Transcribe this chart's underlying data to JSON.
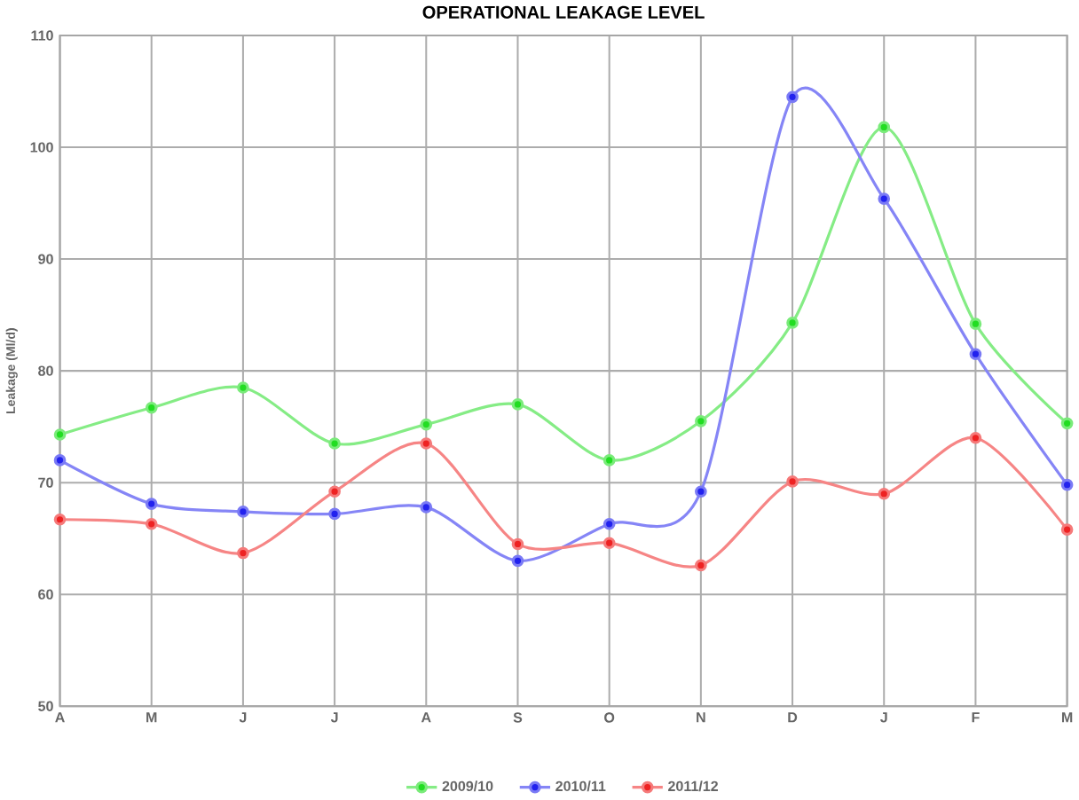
{
  "chart_data": {
    "type": "line",
    "title": "OPERATIONAL LEAKAGE LEVEL",
    "ylabel": "Leakage (Ml/d)",
    "categories": [
      "A",
      "M",
      "J",
      "J",
      "A",
      "S",
      "O",
      "N",
      "D",
      "J",
      "F",
      "M"
    ],
    "series": [
      {
        "name": "2009/10",
        "color": "#22dd22",
        "values": [
          74.3,
          76.7,
          78.5,
          73.5,
          75.2,
          77,
          72,
          75.5,
          84.3,
          101.8,
          84.2,
          75.3
        ]
      },
      {
        "name": "2010/11",
        "color": "#2222ee",
        "values": [
          72,
          68.1,
          67.4,
          67.2,
          67.8,
          63,
          66.3,
          69.2,
          104.5,
          95.4,
          81.5,
          69.8
        ]
      },
      {
        "name": "2011/12",
        "color": "#ee2222",
        "values": [
          66.7,
          66.3,
          63.7,
          69.2,
          73.5,
          64.5,
          64.6,
          62.6,
          70.1,
          69,
          74,
          65.8
        ]
      }
    ],
    "ylim": [
      50,
      110
    ],
    "yticks": [
      50,
      60,
      70,
      80,
      90,
      100,
      110
    ],
    "grid": true,
    "legend": "bottom",
    "marker": "circle",
    "line_style": "solid"
  }
}
